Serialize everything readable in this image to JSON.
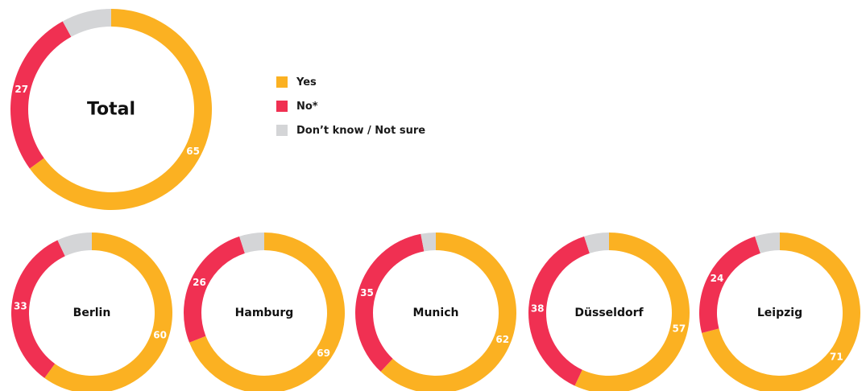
{
  "colors": {
    "yes": "#fbb122",
    "no": "#f03052",
    "dk": "#d4d5d7"
  },
  "legend": [
    {
      "key": "yes",
      "label": "Yes"
    },
    {
      "key": "no",
      "label": "No*"
    },
    {
      "key": "dk",
      "label": "Don’t know / Not sure"
    }
  ],
  "chart_data": [
    {
      "type": "pie",
      "title": "Total",
      "categories": [
        "Yes",
        "No*",
        "Don’t know / Not sure"
      ],
      "values": [
        65,
        27,
        8
      ]
    },
    {
      "type": "pie",
      "title": "Berlin",
      "categories": [
        "Yes",
        "No*",
        "Don’t know / Not sure"
      ],
      "values": [
        60,
        33,
        7
      ]
    },
    {
      "type": "pie",
      "title": "Hamburg",
      "categories": [
        "Yes",
        "No*",
        "Don’t know / Not sure"
      ],
      "values": [
        69,
        26,
        5
      ]
    },
    {
      "type": "pie",
      "title": "Munich",
      "categories": [
        "Yes",
        "No*",
        "Don’t know / Not sure"
      ],
      "values": [
        62,
        35,
        3
      ]
    },
    {
      "type": "pie",
      "title": "Düsseldorf",
      "categories": [
        "Yes",
        "No*",
        "Don’t know / Not sure"
      ],
      "values": [
        57,
        38,
        5
      ]
    },
    {
      "type": "pie",
      "title": "Leipzig",
      "categories": [
        "Yes",
        "No*",
        "Don’t know / Not sure"
      ],
      "values": [
        71,
        24,
        5
      ]
    }
  ]
}
